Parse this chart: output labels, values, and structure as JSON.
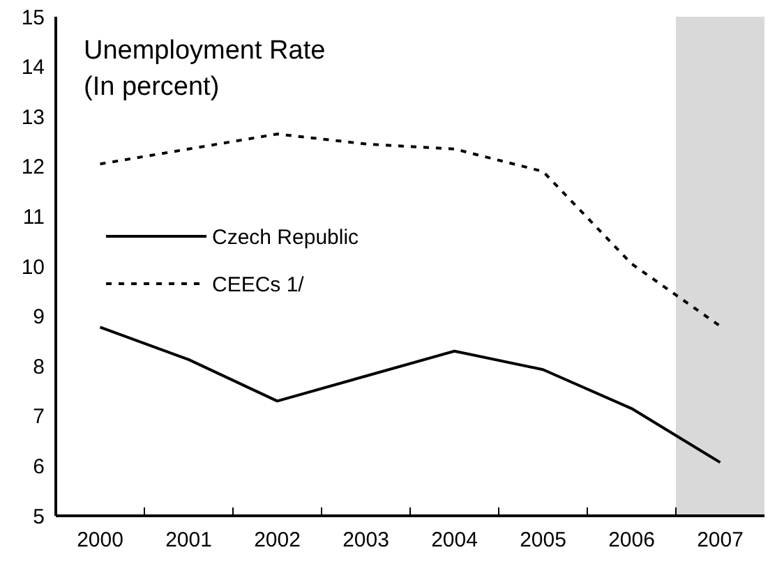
{
  "chart_data": {
    "type": "line",
    "title": "Unemployment Rate",
    "subtitle": "(In percent)",
    "categories": [
      "2000",
      "2001",
      "2002",
      "2003",
      "2004",
      "2005",
      "2006",
      "2007"
    ],
    "series": [
      {
        "name": "Czech Republic",
        "color": "#000000",
        "line_style": "solid",
        "values": [
          8.78,
          8.13,
          7.3,
          7.8,
          8.3,
          7.93,
          7.15,
          6.07
        ]
      },
      {
        "name": "CEECs 1/",
        "color": "#000000",
        "line_style": "dashed",
        "values": [
          12.05,
          12.35,
          12.65,
          12.45,
          12.35,
          11.9,
          10.05,
          8.8
        ]
      }
    ],
    "ylim": [
      5,
      15
    ],
    "yticks": [
      5,
      6,
      7,
      8,
      9,
      10,
      11,
      12,
      13,
      14,
      15
    ],
    "grid": false,
    "legend": "left",
    "marker": "none",
    "bands": [
      {
        "axis": "x",
        "from": "2007",
        "to": "2007",
        "color": "#d9d9d9"
      }
    ]
  }
}
